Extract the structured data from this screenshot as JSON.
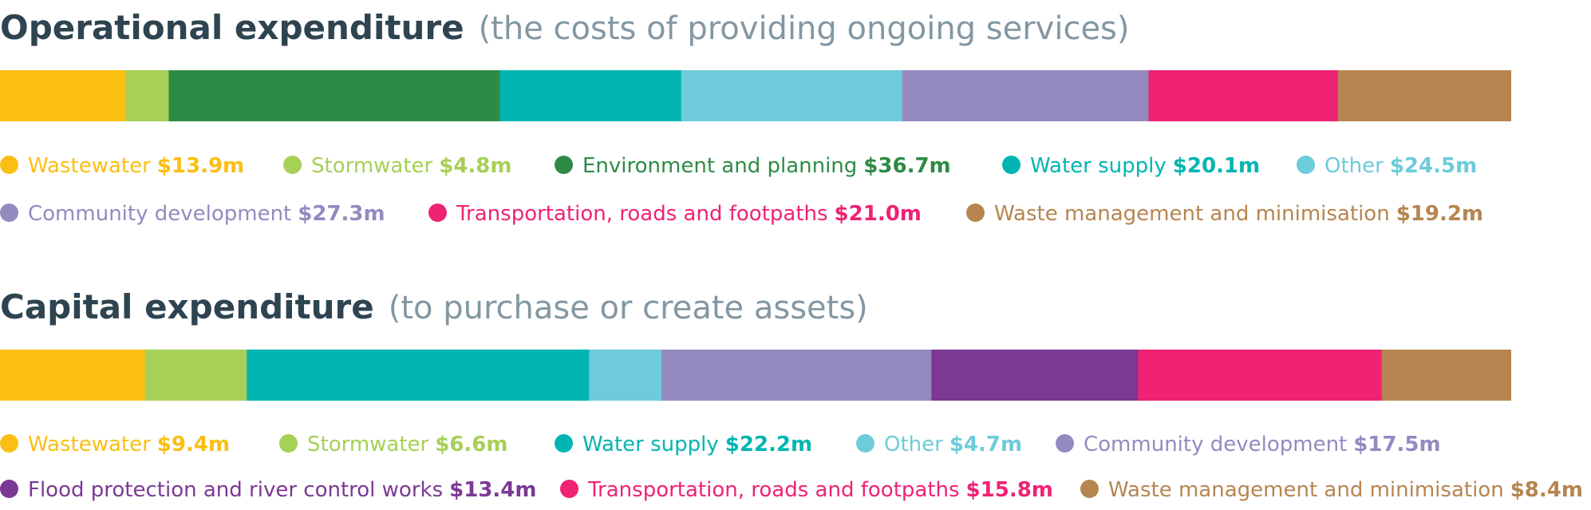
{
  "colors": {
    "wastewater": "#fbbf13",
    "stormwater": "#a6d056",
    "environment": "#2e8b45",
    "water_supply": "#00b5b1",
    "other": "#6dcbda",
    "community": "#9589c1",
    "flood": "#7b3994",
    "transport": "#ef2274",
    "waste": "#b68550"
  },
  "chart_data": [
    {
      "type": "bar",
      "orientation": "horizontal-stacked",
      "title": "Operational expenditure",
      "subtitle": "(the costs of providing ongoing services)",
      "unit": "$m",
      "categories": [
        "Wastewater",
        "Stormwater",
        "Environment and planning",
        "Water supply",
        "Other",
        "Community development",
        "Transportation, roads and footpaths",
        "Waste management and minimisation"
      ],
      "values": [
        13.9,
        4.8,
        36.7,
        20.1,
        24.5,
        27.3,
        21.0,
        19.2
      ],
      "labels": [
        "$13.9m",
        "$4.8m",
        "$36.7m",
        "$20.1m",
        "$24.5m",
        "$27.3m",
        "$21.0m",
        "$19.2m"
      ],
      "color_keys": [
        "wastewater",
        "stormwater",
        "environment",
        "water_supply",
        "other",
        "community",
        "transport",
        "waste"
      ],
      "legend_rows": [
        [
          0,
          1,
          2,
          3,
          4
        ],
        [
          5,
          6,
          7
        ]
      ]
    },
    {
      "type": "bar",
      "orientation": "horizontal-stacked",
      "title": "Capital expenditure",
      "subtitle": "(to purchase or create assets)",
      "unit": "$m",
      "categories": [
        "Wastewater",
        "Stormwater",
        "Water supply",
        "Other",
        "Community development",
        "Flood protection and river control works",
        "Transportation, roads and footpaths",
        "Waste management and minimisation"
      ],
      "values": [
        9.4,
        6.6,
        22.2,
        4.7,
        17.5,
        13.4,
        15.8,
        8.4
      ],
      "labels": [
        "$9.4m",
        "$6.6m",
        "$22.2m",
        "$4.7m",
        "$17.5m",
        "$13.4m",
        "$15.8m",
        "$8.4m"
      ],
      "color_keys": [
        "wastewater",
        "stormwater",
        "water_supply",
        "other",
        "community",
        "flood",
        "transport",
        "waste"
      ],
      "legend_rows": [
        [
          0,
          1,
          2,
          3,
          4
        ],
        [
          5,
          6,
          7
        ]
      ]
    }
  ]
}
